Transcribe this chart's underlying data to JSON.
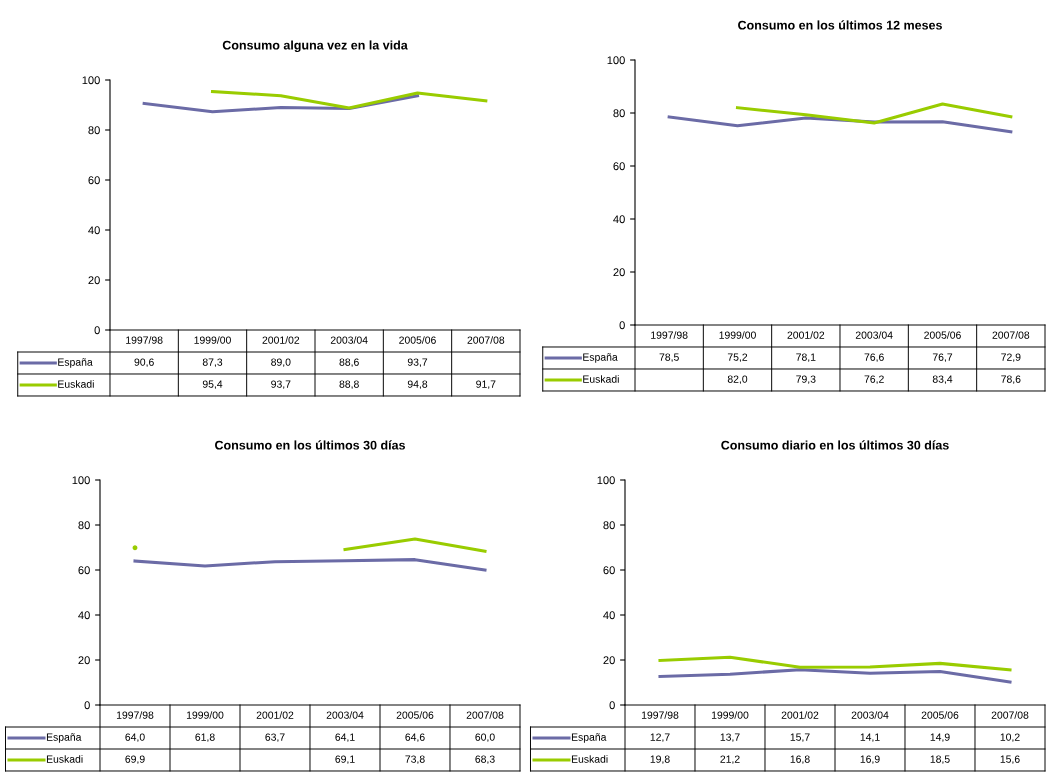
{
  "chart_data": [
    {
      "type": "line",
      "title": "Consumo alguna vez en la vida",
      "categories": [
        "1997/98",
        "1999/00",
        "2001/02",
        "2003/04",
        "2005/06",
        "2007/08"
      ],
      "ylim": [
        0,
        100
      ],
      "yticks": [
        0,
        20,
        40,
        60,
        80,
        100
      ],
      "legend": "bottom",
      "series": [
        {
          "name": "España",
          "color": "#6b6ba6",
          "values": [
            90.6,
            87.3,
            89.0,
            88.6,
            93.7,
            null
          ],
          "value_labels": [
            "90,6",
            "87,3",
            "89,0",
            "88,6",
            "93,7",
            null
          ]
        },
        {
          "name": "Euskadi",
          "color": "#99cc00",
          "values": [
            null,
            95.4,
            93.7,
            88.8,
            94.8,
            91.7
          ],
          "value_labels": [
            null,
            "95,4",
            "93,7",
            "88,8",
            "94,8",
            "91,7"
          ]
        }
      ]
    },
    {
      "type": "line",
      "title": "Consumo en los últimos 12 meses",
      "categories": [
        "1997/98",
        "1999/00",
        "2001/02",
        "2003/04",
        "2005/06",
        "2007/08"
      ],
      "ylim": [
        0,
        100
      ],
      "yticks": [
        0,
        20,
        40,
        60,
        80,
        100
      ],
      "legend": "bottom",
      "series": [
        {
          "name": "España",
          "color": "#6b6ba6",
          "values": [
            78.5,
            75.2,
            78.1,
            76.6,
            76.7,
            72.9
          ],
          "value_labels": [
            "78,5",
            "75,2",
            "78,1",
            "76,6",
            "76,7",
            "72,9"
          ]
        },
        {
          "name": "Euskadi",
          "color": "#99cc00",
          "values": [
            null,
            82.0,
            79.3,
            76.2,
            83.4,
            78.6
          ],
          "value_labels": [
            null,
            "82,0",
            "79,3",
            "76,2",
            "83,4",
            "78,6"
          ]
        }
      ]
    },
    {
      "type": "line",
      "title": "Consumo en los últimos 30 días",
      "categories": [
        "1997/98",
        "1999/00",
        "2001/02",
        "2003/04",
        "2005/06",
        "2007/08"
      ],
      "ylim": [
        0,
        100
      ],
      "yticks": [
        0,
        20,
        40,
        60,
        80,
        100
      ],
      "legend": "bottom",
      "series": [
        {
          "name": "España",
          "color": "#6b6ba6",
          "values": [
            64.0,
            61.8,
            63.7,
            64.1,
            64.6,
            60.0
          ],
          "value_labels": [
            "64,0",
            "61,8",
            "63,7",
            "64,1",
            "64,6",
            "60,0"
          ]
        },
        {
          "name": "Euskadi",
          "color": "#99cc00",
          "values": [
            69.9,
            null,
            null,
            69.1,
            73.8,
            68.3
          ],
          "value_labels": [
            "69,9",
            null,
            null,
            "69,1",
            "73,8",
            "68,3"
          ]
        }
      ]
    },
    {
      "type": "line",
      "title": "Consumo diario en los últimos 30 días",
      "categories": [
        "1997/98",
        "1999/00",
        "2001/02",
        "2003/04",
        "2005/06",
        "2007/08"
      ],
      "ylim": [
        0,
        100
      ],
      "yticks": [
        0,
        20,
        40,
        60,
        80,
        100
      ],
      "legend": "bottom",
      "series": [
        {
          "name": "España",
          "color": "#6b6ba6",
          "values": [
            12.7,
            13.7,
            15.7,
            14.1,
            14.9,
            10.2
          ],
          "value_labels": [
            "12,7",
            "13,7",
            "15,7",
            "14,1",
            "14,9",
            "10,2"
          ]
        },
        {
          "name": "Euskadi",
          "color": "#99cc00",
          "values": [
            19.8,
            21.2,
            16.8,
            16.9,
            18.5,
            15.6
          ],
          "value_labels": [
            "19,8",
            "21,2",
            "16,8",
            "16,9",
            "18,5",
            "15,6"
          ]
        }
      ]
    }
  ]
}
